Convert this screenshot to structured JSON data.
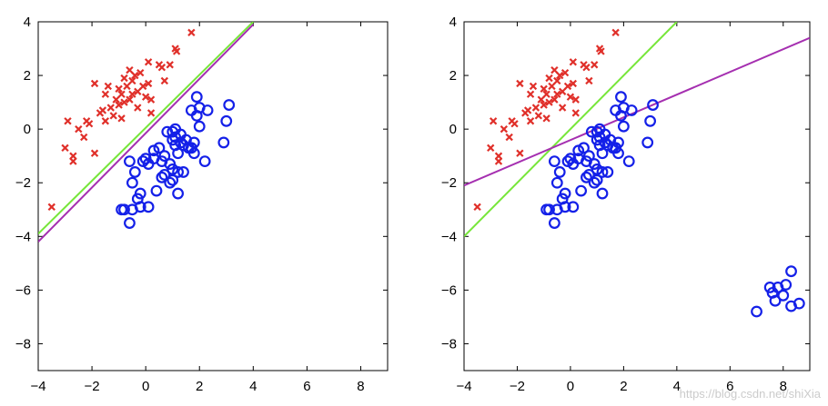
{
  "colors": {
    "red": "#e0302a",
    "blue": "#1420e8",
    "green": "#77e63a",
    "magenta": "#a52fb0"
  },
  "watermark": "https://blog.csdn.net/shiXia",
  "chart_data": [
    {
      "type": "scatter",
      "xlim": [
        -4,
        9
      ],
      "ylim": [
        -9,
        4
      ],
      "xticks": [
        -4,
        -2,
        0,
        2,
        4,
        6,
        8
      ],
      "yticks": [
        4,
        2,
        0,
        -2,
        -4,
        -6,
        -8
      ],
      "grid": false,
      "series": [
        {
          "marker": "cross",
          "color": "red",
          "points": [
            [
              -3.5,
              -2.9
            ],
            [
              -3.0,
              -0.7
            ],
            [
              -2.9,
              0.3
            ],
            [
              -2.7,
              -1.0
            ],
            [
              -2.7,
              -1.2
            ],
            [
              -2.5,
              0.0
            ],
            [
              -2.3,
              -0.3
            ],
            [
              -2.2,
              0.3
            ],
            [
              -2.1,
              0.2
            ],
            [
              -1.9,
              1.7
            ],
            [
              -1.9,
              -0.9
            ],
            [
              -1.7,
              0.6
            ],
            [
              -1.6,
              0.7
            ],
            [
              -1.5,
              1.3
            ],
            [
              -1.5,
              0.3
            ],
            [
              -1.4,
              1.6
            ],
            [
              -1.3,
              0.8
            ],
            [
              -1.2,
              0.5
            ],
            [
              -1.1,
              1.1
            ],
            [
              -1.0,
              1.5
            ],
            [
              -1.0,
              0.9
            ],
            [
              -0.9,
              1.3
            ],
            [
              -0.9,
              0.4
            ],
            [
              -0.8,
              1.9
            ],
            [
              -0.8,
              1.0
            ],
            [
              -0.7,
              1.6
            ],
            [
              -0.6,
              2.2
            ],
            [
              -0.6,
              1.1
            ],
            [
              -0.5,
              1.8
            ],
            [
              -0.5,
              1.3
            ],
            [
              -0.4,
              2.0
            ],
            [
              -0.3,
              1.4
            ],
            [
              -0.3,
              0.8
            ],
            [
              -0.2,
              2.1
            ],
            [
              -0.1,
              1.6
            ],
            [
              0.0,
              1.2
            ],
            [
              0.1,
              2.5
            ],
            [
              0.1,
              1.7
            ],
            [
              0.2,
              1.1
            ],
            [
              0.2,
              0.6
            ],
            [
              0.5,
              2.4
            ],
            [
              0.6,
              2.3
            ],
            [
              0.7,
              1.8
            ],
            [
              0.9,
              2.4
            ],
            [
              1.1,
              3.0
            ],
            [
              1.15,
              2.9
            ],
            [
              1.7,
              3.6
            ]
          ]
        },
        {
          "marker": "circle",
          "color": "blue",
          "points": [
            [
              -0.9,
              -3.0
            ],
            [
              -0.8,
              -3.0
            ],
            [
              -0.6,
              -1.2
            ],
            [
              -0.6,
              -3.5
            ],
            [
              -0.5,
              -2.0
            ],
            [
              -0.5,
              -3.0
            ],
            [
              -0.4,
              -1.6
            ],
            [
              -0.3,
              -2.6
            ],
            [
              -0.2,
              -2.9
            ],
            [
              -0.2,
              -2.4
            ],
            [
              -0.1,
              -1.2
            ],
            [
              0.0,
              -1.1
            ],
            [
              0.1,
              -1.3
            ],
            [
              0.1,
              -2.9
            ],
            [
              0.3,
              -1.1
            ],
            [
              0.3,
              -0.8
            ],
            [
              0.4,
              -2.3
            ],
            [
              0.5,
              -0.7
            ],
            [
              0.6,
              -1.2
            ],
            [
              0.6,
              -1.8
            ],
            [
              0.7,
              -1.7
            ],
            [
              0.7,
              -1.0
            ],
            [
              0.8,
              -0.1
            ],
            [
              0.9,
              -1.3
            ],
            [
              0.9,
              -2.0
            ],
            [
              1.0,
              -1.5
            ],
            [
              1.0,
              -0.4
            ],
            [
              1.0,
              -1.9
            ],
            [
              1.0,
              -0.1
            ],
            [
              1.1,
              -0.6
            ],
            [
              1.1,
              -0.3
            ],
            [
              1.1,
              0.0
            ],
            [
              1.2,
              -0.9
            ],
            [
              1.2,
              -2.4
            ],
            [
              1.2,
              -1.6
            ],
            [
              1.3,
              -0.5
            ],
            [
              1.3,
              -0.2
            ],
            [
              1.4,
              -0.6
            ],
            [
              1.4,
              -1.6
            ],
            [
              1.5,
              -0.4
            ],
            [
              1.6,
              -0.7
            ],
            [
              1.7,
              -0.7
            ],
            [
              1.7,
              0.7
            ],
            [
              1.8,
              -0.5
            ],
            [
              1.8,
              -0.9
            ],
            [
              1.9,
              1.2
            ],
            [
              1.9,
              0.5
            ],
            [
              2.0,
              0.1
            ],
            [
              2.0,
              0.8
            ],
            [
              2.2,
              -1.2
            ],
            [
              2.3,
              0.7
            ],
            [
              2.9,
              -0.5
            ],
            [
              3.0,
              0.3
            ],
            [
              3.1,
              0.9
            ]
          ]
        }
      ],
      "lines": [
        {
          "color": "green",
          "x": [
            -4,
            4
          ],
          "y": [
            -3.9,
            4.0
          ]
        },
        {
          "color": "magenta",
          "x": [
            -4,
            4
          ],
          "y": [
            -4.2,
            3.9
          ]
        }
      ]
    },
    {
      "type": "scatter",
      "xlim": [
        -4,
        9
      ],
      "ylim": [
        -9,
        4
      ],
      "xticks": [
        -4,
        -2,
        0,
        2,
        4,
        6,
        8
      ],
      "yticks": [
        4,
        2,
        0,
        -2,
        -4,
        -6,
        -8
      ],
      "grid": false,
      "series": [
        {
          "marker": "cross",
          "color": "red",
          "points": [
            [
              -3.5,
              -2.9
            ],
            [
              -3.0,
              -0.7
            ],
            [
              -2.9,
              0.3
            ],
            [
              -2.7,
              -1.0
            ],
            [
              -2.7,
              -1.2
            ],
            [
              -2.5,
              0.0
            ],
            [
              -2.3,
              -0.3
            ],
            [
              -2.2,
              0.3
            ],
            [
              -2.1,
              0.2
            ],
            [
              -1.9,
              1.7
            ],
            [
              -1.9,
              -0.9
            ],
            [
              -1.7,
              0.6
            ],
            [
              -1.6,
              0.7
            ],
            [
              -1.5,
              1.3
            ],
            [
              -1.5,
              0.3
            ],
            [
              -1.4,
              1.6
            ],
            [
              -1.3,
              0.8
            ],
            [
              -1.2,
              0.5
            ],
            [
              -1.1,
              1.1
            ],
            [
              -1.0,
              1.5
            ],
            [
              -1.0,
              0.9
            ],
            [
              -0.9,
              1.3
            ],
            [
              -0.9,
              0.4
            ],
            [
              -0.8,
              1.9
            ],
            [
              -0.8,
              1.0
            ],
            [
              -0.7,
              1.6
            ],
            [
              -0.6,
              2.2
            ],
            [
              -0.6,
              1.1
            ],
            [
              -0.5,
              1.8
            ],
            [
              -0.5,
              1.3
            ],
            [
              -0.4,
              2.0
            ],
            [
              -0.3,
              1.4
            ],
            [
              -0.3,
              0.8
            ],
            [
              -0.2,
              2.1
            ],
            [
              -0.1,
              1.6
            ],
            [
              0.0,
              1.2
            ],
            [
              0.1,
              2.5
            ],
            [
              0.1,
              1.7
            ],
            [
              0.2,
              1.1
            ],
            [
              0.2,
              0.6
            ],
            [
              0.5,
              2.4
            ],
            [
              0.6,
              2.3
            ],
            [
              0.7,
              1.8
            ],
            [
              0.9,
              2.4
            ],
            [
              1.1,
              3.0
            ],
            [
              1.15,
              2.9
            ],
            [
              1.7,
              3.6
            ]
          ]
        },
        {
          "marker": "circle",
          "color": "blue",
          "points": [
            [
              -0.9,
              -3.0
            ],
            [
              -0.8,
              -3.0
            ],
            [
              -0.6,
              -1.2
            ],
            [
              -0.6,
              -3.5
            ],
            [
              -0.5,
              -2.0
            ],
            [
              -0.5,
              -3.0
            ],
            [
              -0.4,
              -1.6
            ],
            [
              -0.3,
              -2.6
            ],
            [
              -0.2,
              -2.9
            ],
            [
              -0.2,
              -2.4
            ],
            [
              -0.1,
              -1.2
            ],
            [
              0.0,
              -1.1
            ],
            [
              0.1,
              -1.3
            ],
            [
              0.1,
              -2.9
            ],
            [
              0.3,
              -1.1
            ],
            [
              0.3,
              -0.8
            ],
            [
              0.4,
              -2.3
            ],
            [
              0.5,
              -0.7
            ],
            [
              0.6,
              -1.2
            ],
            [
              0.6,
              -1.8
            ],
            [
              0.7,
              -1.7
            ],
            [
              0.7,
              -1.0
            ],
            [
              0.8,
              -0.1
            ],
            [
              0.9,
              -1.3
            ],
            [
              0.9,
              -2.0
            ],
            [
              1.0,
              -1.5
            ],
            [
              1.0,
              -0.4
            ],
            [
              1.0,
              -1.9
            ],
            [
              1.0,
              -0.1
            ],
            [
              1.1,
              -0.6
            ],
            [
              1.1,
              -0.3
            ],
            [
              1.1,
              0.0
            ],
            [
              1.2,
              -0.9
            ],
            [
              1.2,
              -2.4
            ],
            [
              1.2,
              -1.6
            ],
            [
              1.3,
              -0.5
            ],
            [
              1.3,
              -0.2
            ],
            [
              1.4,
              -0.6
            ],
            [
              1.4,
              -1.6
            ],
            [
              1.5,
              -0.4
            ],
            [
              1.6,
              -0.7
            ],
            [
              1.7,
              -0.7
            ],
            [
              1.7,
              0.7
            ],
            [
              1.8,
              -0.5
            ],
            [
              1.8,
              -0.9
            ],
            [
              1.9,
              1.2
            ],
            [
              1.9,
              0.5
            ],
            [
              2.0,
              0.1
            ],
            [
              2.0,
              0.8
            ],
            [
              2.2,
              -1.2
            ],
            [
              2.3,
              0.7
            ],
            [
              2.9,
              -0.5
            ],
            [
              3.0,
              0.3
            ],
            [
              3.1,
              0.9
            ],
            [
              7.0,
              -6.8
            ],
            [
              7.5,
              -5.9
            ],
            [
              7.6,
              -6.1
            ],
            [
              7.7,
              -6.4
            ],
            [
              7.8,
              -5.9
            ],
            [
              8.0,
              -6.2
            ],
            [
              8.1,
              -5.8
            ],
            [
              8.3,
              -5.3
            ],
            [
              8.3,
              -6.6
            ],
            [
              8.6,
              -6.5
            ]
          ]
        }
      ],
      "lines": [
        {
          "color": "green",
          "x": [
            -4,
            4
          ],
          "y": [
            -4.0,
            4.0
          ]
        },
        {
          "color": "magenta",
          "x": [
            -4,
            9
          ],
          "y": [
            -2.1,
            3.4
          ]
        }
      ]
    }
  ]
}
